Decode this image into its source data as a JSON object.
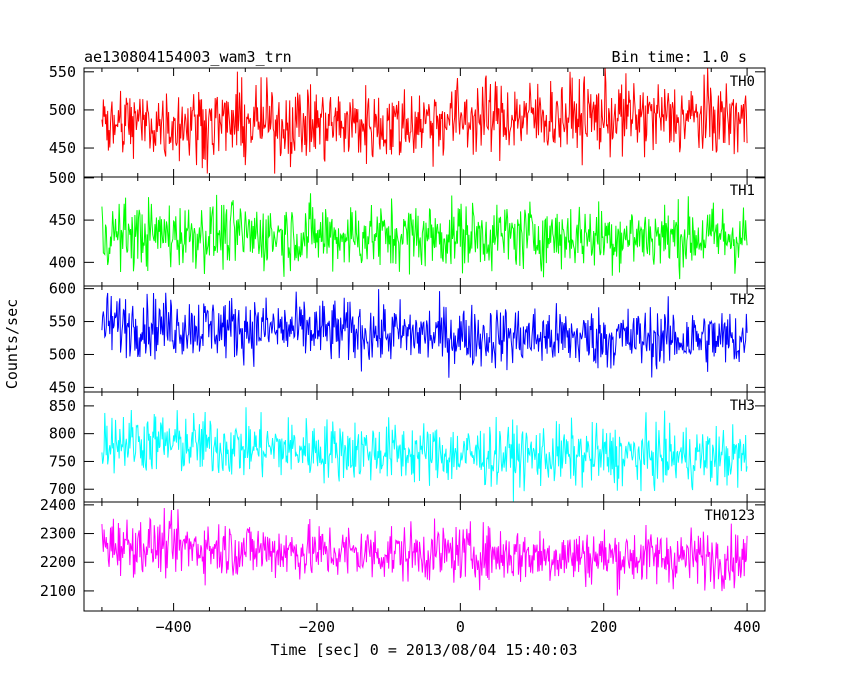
{
  "header": {
    "title": "ae130804154003_wam3_trn",
    "bin_time": "Bin time: 1.0 s"
  },
  "axes": {
    "xlabel": "Time [sec] 0 = 2013/08/04 15:40:03",
    "ylabel": "Counts/sec"
  },
  "chart_data": {
    "type": "line",
    "title": "ae130804154003_wam3_trn",
    "subtitle": "Bin time: 1.0 s",
    "xlabel": "Time [sec] 0 = 2013/08/04 15:40:03",
    "ylabel": "Counts/sec",
    "xlim": [
      -525,
      425
    ],
    "x_ticks": [
      -400,
      -200,
      0,
      200,
      400
    ],
    "x_range_data": [
      -500,
      400
    ],
    "grid": false,
    "panels": [
      {
        "name": "TH0",
        "color": "#ff0000",
        "ylim": [
          412,
          555
        ],
        "y_ticks": [
          450,
          500,
          550
        ],
        "mean": 485,
        "noise": 25,
        "trend": [
          [
            -500,
            482
          ],
          [
            -300,
            483
          ],
          [
            -100,
            480
          ],
          [
            0,
            490
          ],
          [
            200,
            492
          ],
          [
            400,
            488
          ]
        ]
      },
      {
        "name": "TH1",
        "color": "#00ff00",
        "ylim": [
          372,
          501
        ],
        "y_ticks": [
          400,
          450,
          500
        ],
        "mean": 432,
        "noise": 20,
        "trend": [
          [
            -500,
            433
          ],
          [
            -300,
            433
          ],
          [
            -100,
            431
          ],
          [
            0,
            432
          ],
          [
            200,
            431
          ],
          [
            400,
            430
          ]
        ]
      },
      {
        "name": "TH2",
        "color": "#0000ff",
        "ylim": [
          443,
          604
        ],
        "y_ticks": [
          450,
          500,
          550,
          600
        ],
        "mean": 530,
        "noise": 24,
        "trend": [
          [
            -500,
            547
          ],
          [
            -300,
            540
          ],
          [
            -100,
            532
          ],
          [
            0,
            528
          ],
          [
            200,
            525
          ],
          [
            400,
            523
          ]
        ]
      },
      {
        "name": "TH3",
        "color": "#00ffff",
        "ylim": [
          677,
          875
        ],
        "y_ticks": [
          700,
          750,
          800,
          850
        ],
        "mean": 770,
        "noise": 28,
        "trend": [
          [
            -500,
            790
          ],
          [
            -300,
            775
          ],
          [
            -100,
            768
          ],
          [
            0,
            762
          ],
          [
            200,
            760
          ],
          [
            400,
            758
          ]
        ]
      },
      {
        "name": "TH0123",
        "color": "#ff00ff",
        "ylim": [
          2030,
          2410
        ],
        "y_ticks": [
          2100,
          2200,
          2300,
          2400
        ],
        "mean": 2235,
        "noise": 50,
        "trend": [
          [
            -500,
            2265
          ],
          [
            -400,
            2255
          ],
          [
            -200,
            2235
          ],
          [
            0,
            2230
          ],
          [
            200,
            2220
          ],
          [
            400,
            2215
          ]
        ]
      }
    ]
  }
}
